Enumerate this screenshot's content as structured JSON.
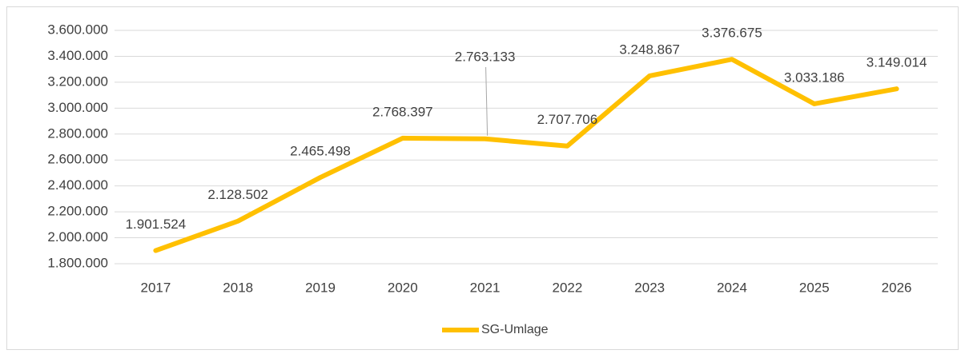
{
  "chart_data": {
    "type": "line",
    "categories": [
      "2017",
      "2018",
      "2019",
      "2020",
      "2021",
      "2022",
      "2023",
      "2024",
      "2025",
      "2026"
    ],
    "series": [
      {
        "name": "SG-Umlage",
        "color": "#ffc000",
        "values": [
          1901524,
          2128502,
          2465498,
          2768397,
          2763133,
          2707706,
          3248867,
          3376675,
          3033186,
          3149014
        ],
        "value_labels": [
          "1.901.524",
          "2.128.502",
          "2.465.498",
          "2.768.397",
          "2.763.133",
          "2.707.706",
          "3.248.867",
          "3.376.675",
          "3.033.186",
          "3.149.014"
        ]
      }
    ],
    "ylim": [
      1800000,
      3600000
    ],
    "yticks": [
      {
        "value": 1800000,
        "label": "1.800.000"
      },
      {
        "value": 2000000,
        "label": "2.000.000"
      },
      {
        "value": 2200000,
        "label": "2.200.000"
      },
      {
        "value": 2400000,
        "label": "2.400.000"
      },
      {
        "value": 2600000,
        "label": "2.600.000"
      },
      {
        "value": 2800000,
        "label": "2.800.000"
      },
      {
        "value": 3000000,
        "label": "3.000.000"
      },
      {
        "value": 3200000,
        "label": "3.200.000"
      },
      {
        "value": 3400000,
        "label": "3.400.000"
      },
      {
        "value": 3600000,
        "label": "3.600.000"
      }
    ],
    "grid": true,
    "legend": "bottom"
  }
}
